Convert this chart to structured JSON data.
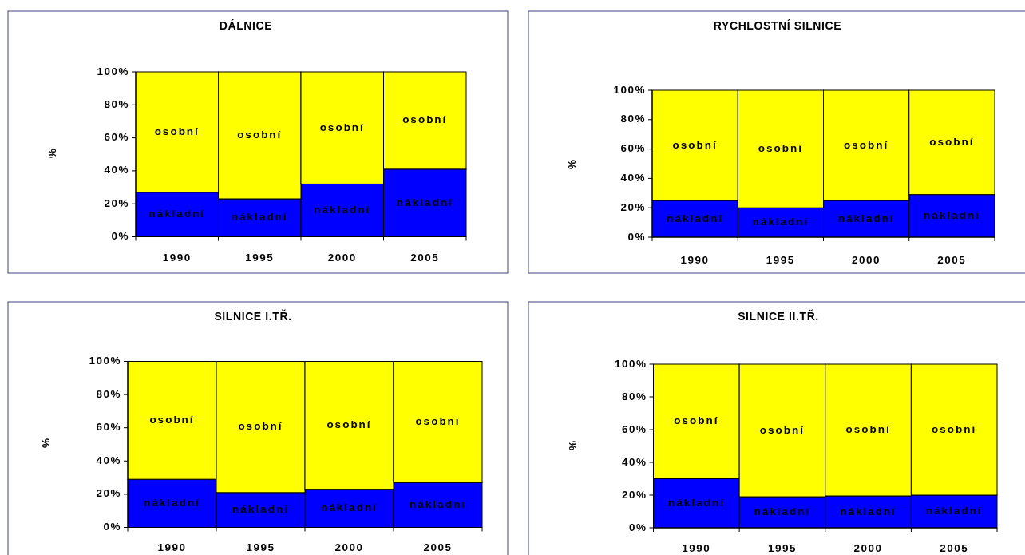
{
  "chart_data": [
    {
      "type": "bar",
      "stacked": true,
      "title": "DÁLNICE",
      "ylabel": "%",
      "categories": [
        "1990",
        "1995",
        "2000",
        "2005"
      ],
      "series": [
        {
          "name": "nákladní",
          "color": "#0000ff",
          "values": [
            27,
            23,
            32,
            41
          ]
        },
        {
          "name": "osobní",
          "color": "#ffff00",
          "values": [
            73,
            77,
            68,
            59
          ]
        }
      ],
      "ylim": [
        0,
        100
      ],
      "yticks": [
        {
          "value": 0,
          "label": "0%"
        },
        {
          "value": 20,
          "label": "20%"
        },
        {
          "value": 40,
          "label": "40%"
        },
        {
          "value": 60,
          "label": "60%"
        },
        {
          "value": 80,
          "label": "80%"
        },
        {
          "value": 100,
          "label": "100%"
        }
      ]
    },
    {
      "type": "bar",
      "stacked": true,
      "title": "RYCHLOSTNÍ SILNICE",
      "ylabel": "%",
      "categories": [
        "1990",
        "1995",
        "2000",
        "2005"
      ],
      "series": [
        {
          "name": "nákladní",
          "color": "#0000ff",
          "values": [
            25,
            20,
            25,
            29
          ]
        },
        {
          "name": "osobní",
          "color": "#ffff00",
          "values": [
            75,
            80,
            75,
            71
          ]
        }
      ],
      "ylim": [
        0,
        100
      ],
      "yticks": [
        {
          "value": 0,
          "label": "0%"
        },
        {
          "value": 20,
          "label": "20%"
        },
        {
          "value": 40,
          "label": "40%"
        },
        {
          "value": 60,
          "label": "60%"
        },
        {
          "value": 80,
          "label": "80%"
        },
        {
          "value": 100,
          "label": "100%"
        }
      ]
    },
    {
      "type": "bar",
      "stacked": true,
      "title": "SILNICE I.TŘ.",
      "ylabel": "%",
      "categories": [
        "1990",
        "1995",
        "2000",
        "2005"
      ],
      "series": [
        {
          "name": "nákladní",
          "color": "#0000ff",
          "values": [
            29,
            21,
            23,
            27
          ]
        },
        {
          "name": "osobní",
          "color": "#ffff00",
          "values": [
            71,
            79,
            77,
            73
          ]
        }
      ],
      "ylim": [
        0,
        100
      ],
      "yticks": [
        {
          "value": 0,
          "label": "0%"
        },
        {
          "value": 20,
          "label": "20%"
        },
        {
          "value": 40,
          "label": "40%"
        },
        {
          "value": 60,
          "label": "60%"
        },
        {
          "value": 80,
          "label": "80%"
        },
        {
          "value": 100,
          "label": "100%"
        }
      ]
    },
    {
      "type": "bar",
      "stacked": true,
      "title": "SILNICE II.TŘ.",
      "ylabel": "%",
      "categories": [
        "1990",
        "1995",
        "2000",
        "2005"
      ],
      "series": [
        {
          "name": "nákladní",
          "color": "#0000ff",
          "values": [
            30,
            19,
            19.5,
            20
          ]
        },
        {
          "name": "osobní",
          "color": "#ffff00",
          "values": [
            70,
            81,
            80.5,
            80
          ]
        }
      ],
      "ylim": [
        0,
        100
      ],
      "yticks": [
        {
          "value": 0,
          "label": "0%"
        },
        {
          "value": 20,
          "label": "20%"
        },
        {
          "value": 40,
          "label": "40%"
        },
        {
          "value": 60,
          "label": "60%"
        },
        {
          "value": 80,
          "label": "80%"
        },
        {
          "value": 100,
          "label": "100%"
        }
      ]
    }
  ]
}
